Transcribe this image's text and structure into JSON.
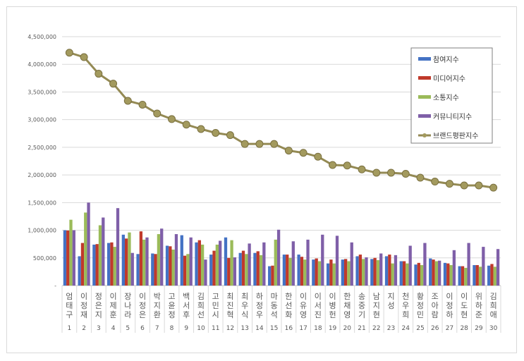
{
  "chart_data": {
    "type": "bar",
    "title": "",
    "xlabel": "",
    "ylabel": "",
    "ylim": [
      0,
      4500000
    ],
    "yticks": [
      0,
      500000,
      1000000,
      1500000,
      2000000,
      2500000,
      3000000,
      3500000,
      4000000,
      4500000
    ],
    "ytick_labels": [
      "-",
      "500,000",
      "1,000,000",
      "1,500,000",
      "2,000,000",
      "2,500,000",
      "3,000,000",
      "3,500,000",
      "4,000,000",
      "4,500,000"
    ],
    "grid": true,
    "legend_position": "top-right",
    "categories": [
      "엄태구",
      "이정재",
      "정은지",
      "이제훈",
      "장나라",
      "이정은",
      "박지환",
      "고윤정",
      "백서후",
      "김희선",
      "고민시",
      "최진혁",
      "최우식",
      "하정우",
      "마동석",
      "한선화",
      "이유영",
      "이서진",
      "이병헌",
      "한채영",
      "송중기",
      "남지현",
      "지성",
      "천우희",
      "황정민",
      "조아람",
      "이정하",
      "이도현",
      "위하준",
      "김희애"
    ],
    "ranks": [
      "1",
      "2",
      "3",
      "4",
      "5",
      "6",
      "7",
      "8",
      "9",
      "10",
      "11",
      "12",
      "13",
      "14",
      "15",
      "16",
      "17",
      "18",
      "19",
      "20",
      "21",
      "22",
      "23",
      "24",
      "25",
      "26",
      "27",
      "28",
      "29",
      "30"
    ],
    "series": [
      {
        "name": "참여지수",
        "type": "bar",
        "color": "#4472c4",
        "values": [
          1000000,
          530000,
          740000,
          770000,
          920000,
          570000,
          580000,
          720000,
          910000,
          780000,
          560000,
          870000,
          590000,
          590000,
          350000,
          560000,
          560000,
          470000,
          400000,
          470000,
          530000,
          480000,
          530000,
          440000,
          380000,
          490000,
          410000,
          350000,
          370000,
          360000
        ]
      },
      {
        "name": "미디어지수",
        "type": "bar",
        "color": "#c0392b",
        "values": [
          995000,
          770000,
          750000,
          780000,
          850000,
          980000,
          570000,
          710000,
          540000,
          820000,
          630000,
          500000,
          630000,
          620000,
          360000,
          560000,
          520000,
          490000,
          470000,
          480000,
          560000,
          500000,
          560000,
          440000,
          410000,
          470000,
          400000,
          350000,
          370000,
          390000
        ]
      },
      {
        "name": "소통지수",
        "type": "bar",
        "color": "#9bbb59",
        "values": [
          1190000,
          1320000,
          1090000,
          700000,
          960000,
          830000,
          930000,
          650000,
          570000,
          740000,
          740000,
          820000,
          570000,
          550000,
          830000,
          500000,
          470000,
          440000,
          400000,
          440000,
          480000,
          460000,
          400000,
          400000,
          370000,
          440000,
          370000,
          320000,
          340000,
          340000
        ]
      },
      {
        "name": "커뮤니티지수",
        "type": "bar",
        "color": "#7f5fa8",
        "values": [
          1000000,
          1500000,
          1230000,
          1400000,
          590000,
          870000,
          1030000,
          930000,
          870000,
          470000,
          810000,
          510000,
          760000,
          780000,
          1010000,
          800000,
          830000,
          920000,
          900000,
          780000,
          510000,
          580000,
          550000,
          720000,
          770000,
          450000,
          640000,
          770000,
          700000,
          660000
        ]
      },
      {
        "name": "브랜드평판지수",
        "type": "line",
        "color": "#948a54",
        "values": [
          4210000,
          4130000,
          3830000,
          3650000,
          3340000,
          3270000,
          3110000,
          3010000,
          2910000,
          2830000,
          2760000,
          2720000,
          2560000,
          2560000,
          2560000,
          2440000,
          2400000,
          2330000,
          2180000,
          2170000,
          2100000,
          2040000,
          2040000,
          2020000,
          1950000,
          1880000,
          1840000,
          1810000,
          1810000,
          1770000
        ]
      }
    ]
  }
}
